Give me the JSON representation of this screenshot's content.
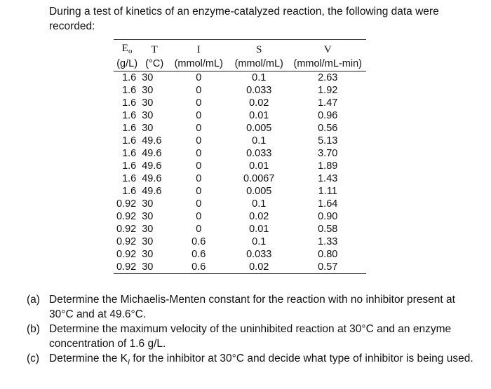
{
  "intro": "During a test of kinetics of an enzyme-catalyzed reaction, the following data were recorded:",
  "table": {
    "headers": [
      {
        "symbol": "E",
        "sub": "o",
        "unit": "(g/L)"
      },
      {
        "symbol": "T",
        "sub": "",
        "unit": "(°C)"
      },
      {
        "symbol": "I",
        "sub": "",
        "unit": "(mmol/mL)"
      },
      {
        "symbol": "S",
        "sub": "",
        "unit": "(mmol/mL)"
      },
      {
        "symbol": "V",
        "sub": "",
        "unit": "(mmol/mL-min)"
      }
    ],
    "rows": [
      [
        "1.6",
        "30",
        "0",
        "0.1",
        "2.63"
      ],
      [
        "1.6",
        "30",
        "0",
        "0.033",
        "1.92"
      ],
      [
        "1.6",
        "30",
        "0",
        "0.02",
        "1.47"
      ],
      [
        "1.6",
        "30",
        "0",
        "0.01",
        "0.96"
      ],
      [
        "1.6",
        "30",
        "0",
        "0.005",
        "0.56"
      ],
      [
        "1.6",
        "49.6",
        "0",
        "0.1",
        "5.13"
      ],
      [
        "1.6",
        "49.6",
        "0",
        "0.033",
        "3.70"
      ],
      [
        "1.6",
        "49.6",
        "0",
        "0.01",
        "1.89"
      ],
      [
        "1.6",
        "49.6",
        "0",
        "0.0067",
        "1.43"
      ],
      [
        "1.6",
        "49.6",
        "0",
        "0.005",
        "1.11"
      ],
      [
        "0.92",
        "30",
        "0",
        "0.1",
        "1.64"
      ],
      [
        "0.92",
        "30",
        "0",
        "0.02",
        "0.90"
      ],
      [
        "0.92",
        "30",
        "0",
        "0.01",
        "0.58"
      ],
      [
        "0.92",
        "30",
        "0.6",
        "0.1",
        "1.33"
      ],
      [
        "0.92",
        "30",
        "0.6",
        "0.033",
        "0.80"
      ],
      [
        "0.92",
        "30",
        "0.6",
        "0.02",
        "0.57"
      ]
    ]
  },
  "questions": [
    {
      "label": "(a)",
      "text": "Determine the Michaelis-Menten constant for the reaction with no inhibitor present at 30°C and at 49.6°C."
    },
    {
      "label": "(b)",
      "text": "Determine the maximum velocity of the uninhibited reaction at 30°C and an enzyme concentration of 1.6 g/L."
    },
    {
      "label": "(c)",
      "text_before": "Determine the K",
      "text_sub": "I",
      "text_after": " for the inhibitor at 30°C and decide what type of inhibitor is being used."
    }
  ]
}
